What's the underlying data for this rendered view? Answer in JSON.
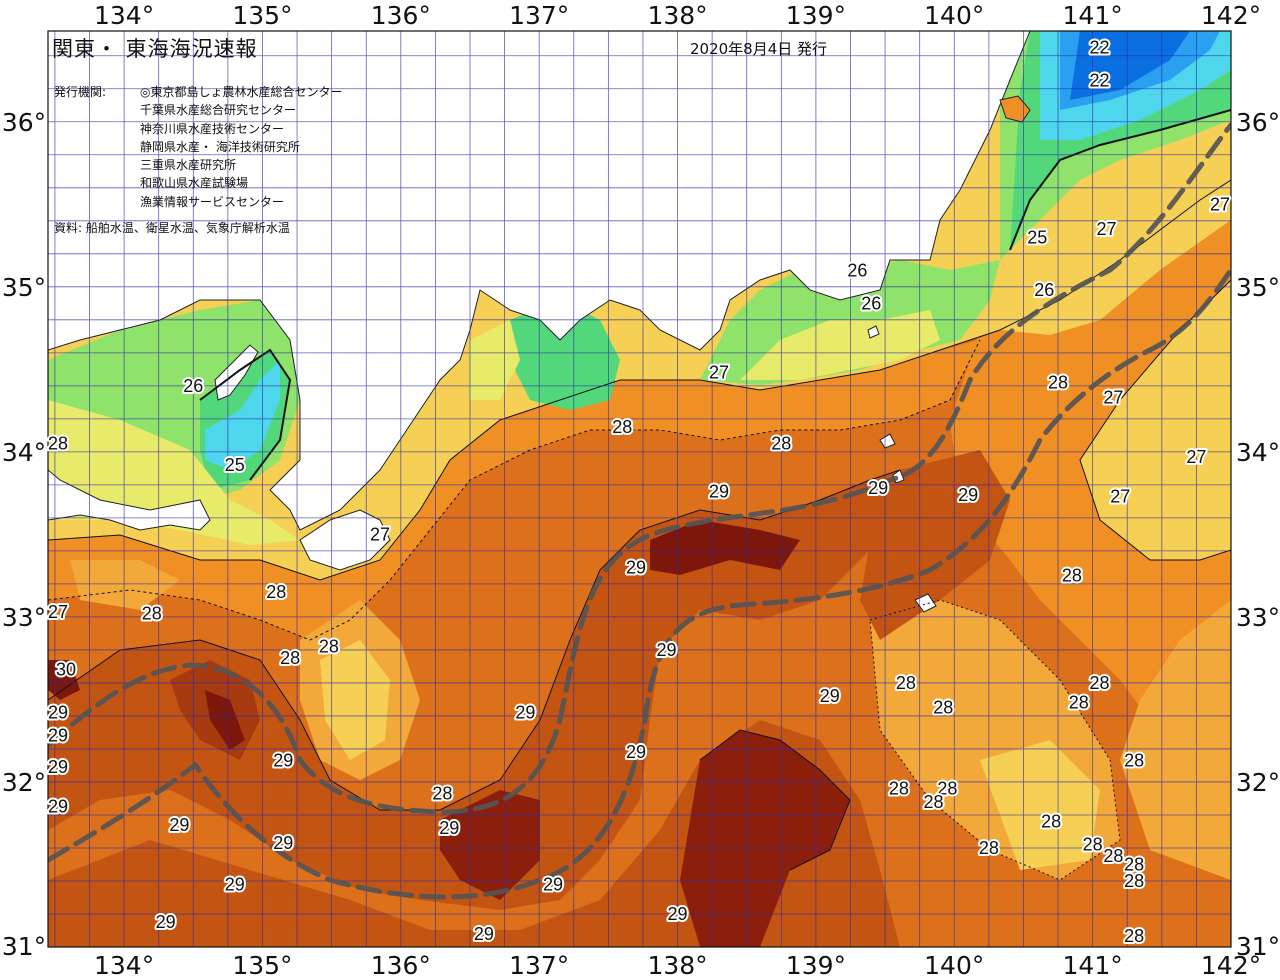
{
  "map": {
    "title": "関東・ 東海海況速報",
    "date": "2020年8月4日 発行",
    "issuer_label": "発行機関:",
    "issuers": [
      "◎東京都島しょ農林水産総合センター",
      "千葉県水産総合研究センター",
      "神奈川県水産技術センター",
      "静岡県水産・ 海洋技術研究所",
      "三重県水産研究所",
      "和歌山県水産試験場",
      "漁業情報サービスセンター"
    ],
    "source": "資料: 船舶水温、衛星水温、気象庁解析水温",
    "lon_labels": [
      "134°",
      "135°",
      "136°",
      "137°",
      "138°",
      "139°",
      "140°",
      "141°",
      "142°"
    ],
    "lat_labels": [
      "36°",
      "35°",
      "34°",
      "33°",
      "32°",
      "31°"
    ],
    "extent": {
      "lon_min": 133.45,
      "lon_max": 142.0,
      "lat_min": 31.0,
      "lat_max": 36.55
    },
    "colors": {
      "t22": "#0a6fe0",
      "t23": "#2aa0f0",
      "t24": "#4ed6ec",
      "t25": "#52d87a",
      "t26": "#8fe36a",
      "t26_5": "#e8ea6a",
      "t27": "#f6cf55",
      "t27_5": "#f3a93a",
      "t28": "#ef8f24",
      "t28_5": "#dd701a",
      "t29": "#c45412",
      "t29_5": "#a83a10",
      "t30": "#7d170c",
      "land": "#ffffff",
      "grid": "#2c2ca8",
      "kuroshio": "#555555"
    },
    "contour_labels": [
      {
        "text": "22",
        "lon": 141.05,
        "lat": 36.45
      },
      {
        "text": "22",
        "lon": 141.05,
        "lat": 36.25
      },
      {
        "text": "25",
        "lon": 140.6,
        "lat": 35.3
      },
      {
        "text": "26",
        "lon": 140.65,
        "lat": 34.98
      },
      {
        "text": "27",
        "lon": 141.1,
        "lat": 35.35
      },
      {
        "text": "27",
        "lon": 141.95,
        "lat": 35.5
      },
      {
        "text": "26",
        "lon": 139.3,
        "lat": 35.1
      },
      {
        "text": "26",
        "lon": 139.4,
        "lat": 34.9
      },
      {
        "text": "26",
        "lon": 134.5,
        "lat": 34.4
      },
      {
        "text": "25",
        "lon": 134.8,
        "lat": 33.92
      },
      {
        "text": "28",
        "lon": 133.48,
        "lat": 34.05
      },
      {
        "text": "27",
        "lon": 138.3,
        "lat": 34.48
      },
      {
        "text": "28",
        "lon": 137.6,
        "lat": 34.15
      },
      {
        "text": "28",
        "lon": 138.75,
        "lat": 34.05
      },
      {
        "text": "28",
        "lon": 140.75,
        "lat": 34.42
      },
      {
        "text": "27",
        "lon": 141.15,
        "lat": 34.33
      },
      {
        "text": "27",
        "lon": 141.75,
        "lat": 33.97
      },
      {
        "text": "27",
        "lon": 141.2,
        "lat": 33.73
      },
      {
        "text": "29",
        "lon": 138.3,
        "lat": 33.76
      },
      {
        "text": "29",
        "lon": 139.45,
        "lat": 33.78
      },
      {
        "text": "29",
        "lon": 140.1,
        "lat": 33.74
      },
      {
        "text": "27",
        "lon": 135.85,
        "lat": 33.5
      },
      {
        "text": "29",
        "lon": 137.7,
        "lat": 33.3
      },
      {
        "text": "28",
        "lon": 140.85,
        "lat": 33.25
      },
      {
        "text": "27",
        "lon": 133.45,
        "lat": 33.03
      },
      {
        "text": "28",
        "lon": 134.2,
        "lat": 33.02
      },
      {
        "text": "28",
        "lon": 135.1,
        "lat": 33.15
      },
      {
        "text": "28",
        "lon": 135.2,
        "lat": 32.75
      },
      {
        "text": "28",
        "lon": 135.48,
        "lat": 32.82
      },
      {
        "text": "30",
        "lon": 133.58,
        "lat": 32.68
      },
      {
        "text": "29",
        "lon": 137.92,
        "lat": 32.8
      },
      {
        "text": "28",
        "lon": 139.65,
        "lat": 32.6
      },
      {
        "text": "28",
        "lon": 141.05,
        "lat": 32.6
      },
      {
        "text": "29",
        "lon": 139.1,
        "lat": 32.52
      },
      {
        "text": "28",
        "lon": 139.92,
        "lat": 32.45
      },
      {
        "text": "28",
        "lon": 140.9,
        "lat": 32.48
      },
      {
        "text": "29",
        "lon": 133.5,
        "lat": 32.42
      },
      {
        "text": "29",
        "lon": 136.9,
        "lat": 32.42
      },
      {
        "text": "29",
        "lon": 133.48,
        "lat": 32.28
      },
      {
        "text": "29",
        "lon": 137.7,
        "lat": 32.18
      },
      {
        "text": "29",
        "lon": 135.15,
        "lat": 32.13
      },
      {
        "text": "28",
        "lon": 141.3,
        "lat": 32.13
      },
      {
        "text": "29",
        "lon": 133.5,
        "lat": 32.09
      },
      {
        "text": "28",
        "lon": 136.3,
        "lat": 31.93
      },
      {
        "text": "28",
        "lon": 139.6,
        "lat": 31.96
      },
      {
        "text": "28",
        "lon": 139.95,
        "lat": 31.96
      },
      {
        "text": "28",
        "lon": 139.85,
        "lat": 31.88
      },
      {
        "text": "29",
        "lon": 133.45,
        "lat": 31.85
      },
      {
        "text": "29",
        "lon": 134.4,
        "lat": 31.74
      },
      {
        "text": "29",
        "lon": 136.35,
        "lat": 31.72
      },
      {
        "text": "28",
        "lon": 140.7,
        "lat": 31.76
      },
      {
        "text": "28",
        "lon": 140.25,
        "lat": 31.6
      },
      {
        "text": "28",
        "lon": 141.0,
        "lat": 31.62
      },
      {
        "text": "28",
        "lon": 141.15,
        "lat": 31.55
      },
      {
        "text": "28",
        "lon": 141.3,
        "lat": 31.5
      },
      {
        "text": "29",
        "lon": 135.15,
        "lat": 31.63
      },
      {
        "text": "28",
        "lon": 141.3,
        "lat": 31.4
      },
      {
        "text": "29",
        "lon": 134.8,
        "lat": 31.38
      },
      {
        "text": "29",
        "lon": 137.1,
        "lat": 31.38
      },
      {
        "text": "29",
        "lon": 138.0,
        "lat": 31.2
      },
      {
        "text": "29",
        "lon": 134.3,
        "lat": 31.15
      },
      {
        "text": "29",
        "lon": 136.6,
        "lat": 31.08
      },
      {
        "text": "28",
        "lon": 141.3,
        "lat": 31.03
      }
    ]
  }
}
